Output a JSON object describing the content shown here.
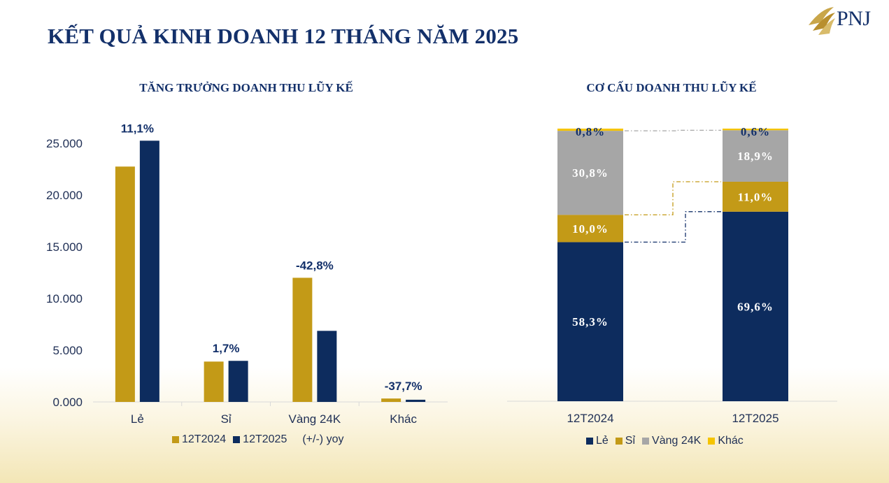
{
  "header": {
    "title": "KẾT QUẢ KINH DOANH 12 THÁNG NĂM 2025",
    "logo_text": "PNJ"
  },
  "colors": {
    "navy": "#13306a",
    "gold": "#c39a17",
    "dark_blue": "#0d2c5e",
    "gray": "#a6a6a6",
    "yellow": "#f5c400"
  },
  "chart_data": [
    {
      "type": "bar",
      "title": "TĂNG TRƯỞNG DOANH THU LŨY KẾ",
      "categories": [
        "Lẻ",
        "Sỉ",
        "Vàng 24K",
        "Khác"
      ],
      "series": [
        {
          "name": "12T2024",
          "values": [
            22750,
            3900,
            12000,
            330
          ]
        },
        {
          "name": "12T2025",
          "values": [
            25250,
            3970,
            6870,
            210
          ]
        }
      ],
      "yoy_label": "(+/-) yoy",
      "yoy": [
        "11,1%",
        "1,7%",
        "-42,8%",
        "-37,7%"
      ],
      "yticks": [
        "0.000",
        "5.000",
        "10.000",
        "15.000",
        "20.000",
        "25.000"
      ],
      "ylim": [
        0,
        27000
      ]
    },
    {
      "type": "bar",
      "stacked": true,
      "title": "CƠ CẤU DOANH THU LŨY KẾ",
      "categories": [
        "12T2024",
        "12T2025"
      ],
      "series": [
        {
          "name": "Lẻ",
          "values": [
            58.3,
            69.6
          ],
          "labels": [
            "58,3%",
            "69,6%"
          ]
        },
        {
          "name": "Sỉ",
          "values": [
            10.0,
            11.0
          ],
          "labels": [
            "10,0%",
            "11,0%"
          ]
        },
        {
          "name": "Vàng 24K",
          "values": [
            30.8,
            18.9
          ],
          "labels": [
            "30,8%",
            "18,9%"
          ]
        },
        {
          "name": "Khác",
          "values": [
            0.8,
            0.6
          ],
          "labels": [
            "0,8%",
            "0,6%"
          ]
        }
      ]
    }
  ]
}
